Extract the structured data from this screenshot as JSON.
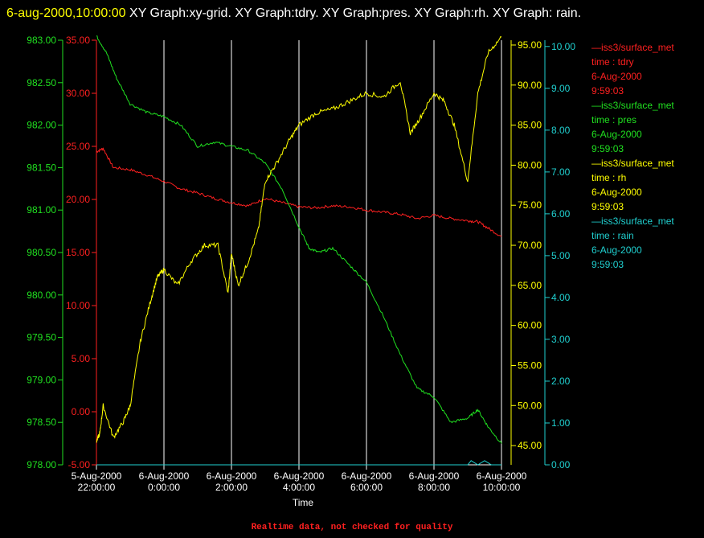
{
  "title": {
    "stamp": "6-aug-2000,10:00:00",
    "rest": " XY Graph:xy-grid.  XY Graph:tdry.  XY Graph:pres.  XY Graph:rh.  XY Graph: rain."
  },
  "footer": "Realtime data, not checked for quality",
  "colors": {
    "tdry": "#ff2020",
    "pres": "#20e020",
    "rh": "#ffff00",
    "rain": "#20d0d0",
    "grid": "#ffffff"
  },
  "legend": [
    {
      "line1": "—iss3/surface_met",
      "line2": "time : tdry",
      "line3": "6-Aug-2000",
      "line4": "9:59:03",
      "color": "#ff2020"
    },
    {
      "line1": "—iss3/surface_met",
      "line2": "time : pres",
      "line3": "6-Aug-2000",
      "line4": "9:59:03",
      "color": "#20e020"
    },
    {
      "line1": "—iss3/surface_met",
      "line2": "time : rh",
      "line3": "6-Aug-2000",
      "line4": "9:59:03",
      "color": "#ffff00"
    },
    {
      "line1": "—iss3/surface_met",
      "line2": "time : rain",
      "line3": "6-Aug-2000",
      "line4": "9:59:03",
      "color": "#20d0d0"
    }
  ],
  "chart_data": {
    "type": "line",
    "xlabel": "Time",
    "x_ticks": [
      {
        "date": "5-Aug-2000",
        "time": "22:00:00"
      },
      {
        "date": "6-Aug-2000",
        "time": "0:00:00"
      },
      {
        "date": "6-Aug-2000",
        "time": "2:00:00"
      },
      {
        "date": "6-Aug-2000",
        "time": "4:00:00"
      },
      {
        "date": "6-Aug-2000",
        "time": "6:00:00"
      },
      {
        "date": "6-Aug-2000",
        "time": "8:00:00"
      },
      {
        "date": "6-Aug-2000",
        "time": "10:00:00"
      }
    ],
    "xlim_hours": [
      22,
      34
    ],
    "grid": "vertical",
    "axes": {
      "pres": {
        "ticks": [
          "978.00",
          "978.50",
          "979.00",
          "979.50",
          "980.00",
          "980.50",
          "981.00",
          "981.50",
          "982.00",
          "982.50",
          "983.00"
        ],
        "range": [
          978,
          983.0
        ]
      },
      "tdry": {
        "ticks": [
          "-5.00",
          "0.00",
          "5.00",
          "10.00",
          "15.00",
          "20.00",
          "25.00",
          "30.00",
          "35.00"
        ],
        "range": [
          -5,
          35
        ]
      },
      "rh": {
        "ticks": [
          "45.00",
          "50.00",
          "55.00",
          "60.00",
          "65.00",
          "70.00",
          "75.00",
          "80.00",
          "85.00",
          "90.00",
          "95.00"
        ],
        "range": [
          42.6,
          95.6
        ]
      },
      "rain": {
        "ticks": [
          "0.00",
          "1.00",
          "2.00",
          "3.00",
          "4.00",
          "5.00",
          "6.00",
          "7.00",
          "8.00",
          "9.00",
          "10.00"
        ],
        "range": [
          0,
          10.15
        ]
      }
    },
    "series": [
      {
        "name": "tdry",
        "axis": "tdry",
        "x": [
          22,
          22.2,
          22.5,
          23,
          23.5,
          24,
          24.5,
          25,
          25.5,
          26,
          26.5,
          27,
          27.5,
          28,
          28.5,
          29,
          29.5,
          30,
          30.5,
          31,
          31.5,
          32,
          32.5,
          33,
          33.3,
          33.6,
          34
        ],
        "y": [
          24.5,
          24.8,
          23,
          22.8,
          22.3,
          21.7,
          21,
          20.6,
          20.1,
          19.7,
          19.4,
          20.1,
          19.7,
          19.3,
          19.2,
          19.4,
          19.3,
          19.0,
          18.8,
          18.6,
          18.2,
          18.5,
          18.2,
          18.0,
          17.9,
          17.3,
          16.5
        ]
      },
      {
        "name": "pres",
        "axis": "pres",
        "x": [
          22,
          22.3,
          22.6,
          23,
          23.5,
          24,
          24.5,
          25,
          25.5,
          26,
          26.5,
          27,
          27.5,
          28,
          28.3,
          28.6,
          29,
          29.5,
          30,
          30.5,
          31,
          31.5,
          32,
          32.5,
          33,
          33.3,
          33.6,
          34
        ],
        "y": [
          983.05,
          982.85,
          982.55,
          982.25,
          982.15,
          982.1,
          982.0,
          981.75,
          981.8,
          981.75,
          981.7,
          981.55,
          981.25,
          980.8,
          980.55,
          980.5,
          980.55,
          980.35,
          980.15,
          979.75,
          979.3,
          978.9,
          978.8,
          978.5,
          978.55,
          978.65,
          978.45,
          978.25
        ]
      },
      {
        "name": "rh",
        "axis": "rh",
        "x": [
          22,
          22.1,
          22.2,
          22.5,
          22.8,
          23,
          23.3,
          23.6,
          23.8,
          24,
          24.4,
          24.8,
          25.2,
          25.6,
          25.9,
          26,
          26.2,
          26.5,
          26.8,
          27,
          27.3,
          27.7,
          28,
          28.5,
          29,
          29.5,
          30,
          30.5,
          31,
          31.3,
          31.6,
          32,
          32.3,
          32.6,
          33,
          33.3,
          33.6,
          34
        ],
        "y": [
          45.5,
          46.5,
          50,
          46,
          48,
          50,
          58,
          63,
          66,
          67,
          65,
          68,
          70,
          70,
          64,
          69,
          65,
          68,
          72,
          78,
          80,
          83,
          85,
          86.5,
          87,
          88,
          89,
          88.5,
          90.5,
          84,
          86,
          89,
          88,
          85,
          78,
          89,
          94,
          96
        ]
      },
      {
        "name": "rain",
        "axis": "rain",
        "x": [
          22,
          33,
          33.1,
          33.3,
          33.5,
          33.7,
          34
        ],
        "y": [
          0.0,
          0.0,
          0.1,
          0.0,
          0.1,
          0.0,
          0.0
        ]
      }
    ]
  }
}
